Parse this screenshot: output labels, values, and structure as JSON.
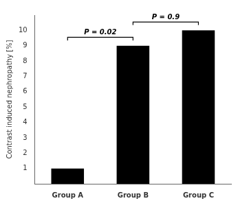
{
  "chart_data": {
    "type": "bar",
    "categories": [
      "Group A",
      "Group B",
      "Group C"
    ],
    "values": [
      1,
      9,
      10
    ],
    "color": "#000000",
    "ylabel": "Contrast induced nephropathy [%]",
    "ylim": [
      0,
      11
    ],
    "yticks": [
      1,
      2,
      3,
      4,
      5,
      6,
      7,
      8,
      9,
      10
    ],
    "grid": false,
    "annotations": [
      {
        "text": "P = 0.02",
        "from": "Group A",
        "to": "Group B",
        "y": 9.55
      },
      {
        "text": "P = 0.9",
        "from": "Group B",
        "to": "Group C",
        "y": 10.55
      }
    ]
  }
}
